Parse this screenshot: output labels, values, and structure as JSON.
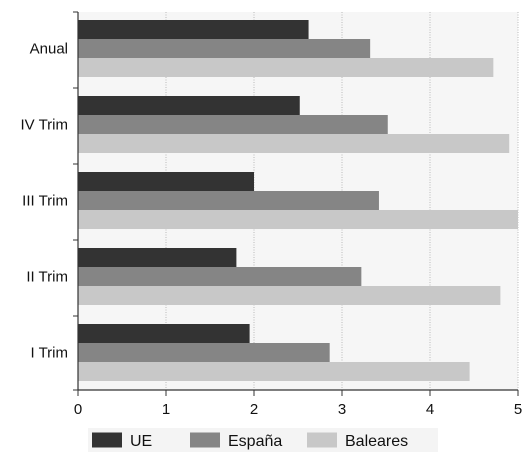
{
  "chart_data": {
    "type": "bar",
    "orientation": "horizontal",
    "categories": [
      "Anual",
      "IV Trim",
      "III Trim",
      "II Trim",
      "I Trim"
    ],
    "series": [
      {
        "name": "UE",
        "values": [
          2.62,
          2.52,
          2.0,
          1.8,
          1.95
        ],
        "color": "#333333"
      },
      {
        "name": "España",
        "values": [
          3.32,
          3.52,
          3.42,
          3.22,
          2.86
        ],
        "color": "#858585"
      },
      {
        "name": "Baleares",
        "values": [
          4.72,
          4.9,
          5.0,
          4.8,
          4.45
        ],
        "color": "#c8c8c8"
      }
    ],
    "x_ticks": [
      "0",
      "1",
      "2",
      "3",
      "4",
      "5"
    ],
    "xlim": [
      0,
      5
    ],
    "grid": "vertical",
    "legend_position": "bottom",
    "title": "",
    "xlabel": "",
    "ylabel": ""
  }
}
